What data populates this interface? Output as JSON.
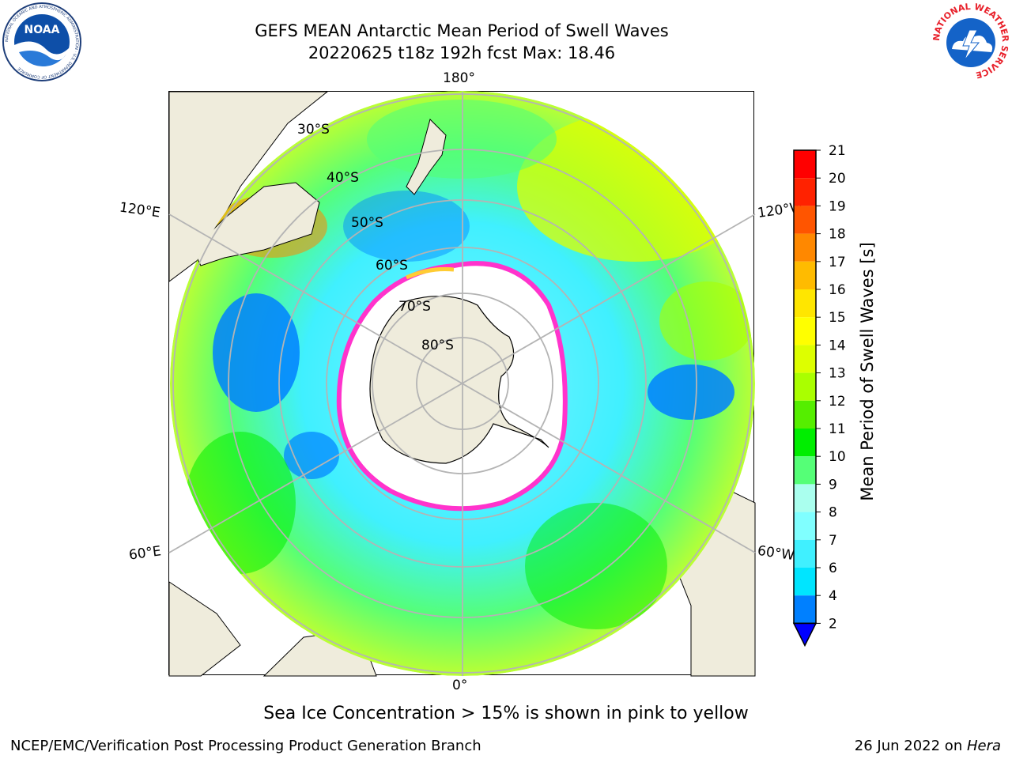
{
  "title": {
    "line1": "GEFS MEAN Antarctic Mean Period of Swell Waves",
    "line2": "20220625 t18z 192h fcst   Max: 18.46"
  },
  "logos": {
    "left": {
      "name": "NOAA",
      "ring_text": "NATIONAL OCEANIC AND ATMOSPHERIC ADMINISTRATION · U.S. DEPARTMENT OF COMMERCE"
    },
    "right": {
      "name": "NATIONAL WEATHER SERVICE"
    }
  },
  "map": {
    "projection": "south-polar-stereographic",
    "longitude_labels": {
      "top": "180°",
      "bottom": "0°",
      "upper_left": "120°E",
      "upper_right": "120°W",
      "lower_left": "60°E",
      "lower_right": "60°W"
    },
    "latitude_labels": [
      "30°S",
      "40°S",
      "50°S",
      "60°S",
      "70°S",
      "80°S"
    ],
    "land_color": "#efecdc",
    "ocean_background": "#ffffff",
    "gridline_color": "#b4b4b4",
    "sea_ice_colors": [
      "#ff33cc",
      "#ffffff",
      "#ffcc33"
    ]
  },
  "colorbar": {
    "label": "Mean Period of Swell Waves [s]",
    "ticks": [
      "2",
      "4",
      "6",
      "7",
      "8",
      "9",
      "10",
      "11",
      "12",
      "13",
      "14",
      "15",
      "16",
      "17",
      "18",
      "19",
      "20",
      "21"
    ],
    "colors": [
      "#0000ff",
      "#0080ff",
      "#00e5ff",
      "#40f0ff",
      "#80ffff",
      "#aaffee",
      "#55ff77",
      "#00ee00",
      "#55ee00",
      "#aaff00",
      "#ddff00",
      "#ffff00",
      "#ffe600",
      "#ffbb00",
      "#ff8800",
      "#ff5500",
      "#ff2200",
      "#ff0000"
    ]
  },
  "caption": "Sea Ice Concentration > 15% is shown in pink to yellow",
  "footer": {
    "left": "NCEP/EMC/Verification Post Processing Product Generation Branch",
    "right_prefix": "26 Jun 2022 on ",
    "right_host": "Hera"
  }
}
